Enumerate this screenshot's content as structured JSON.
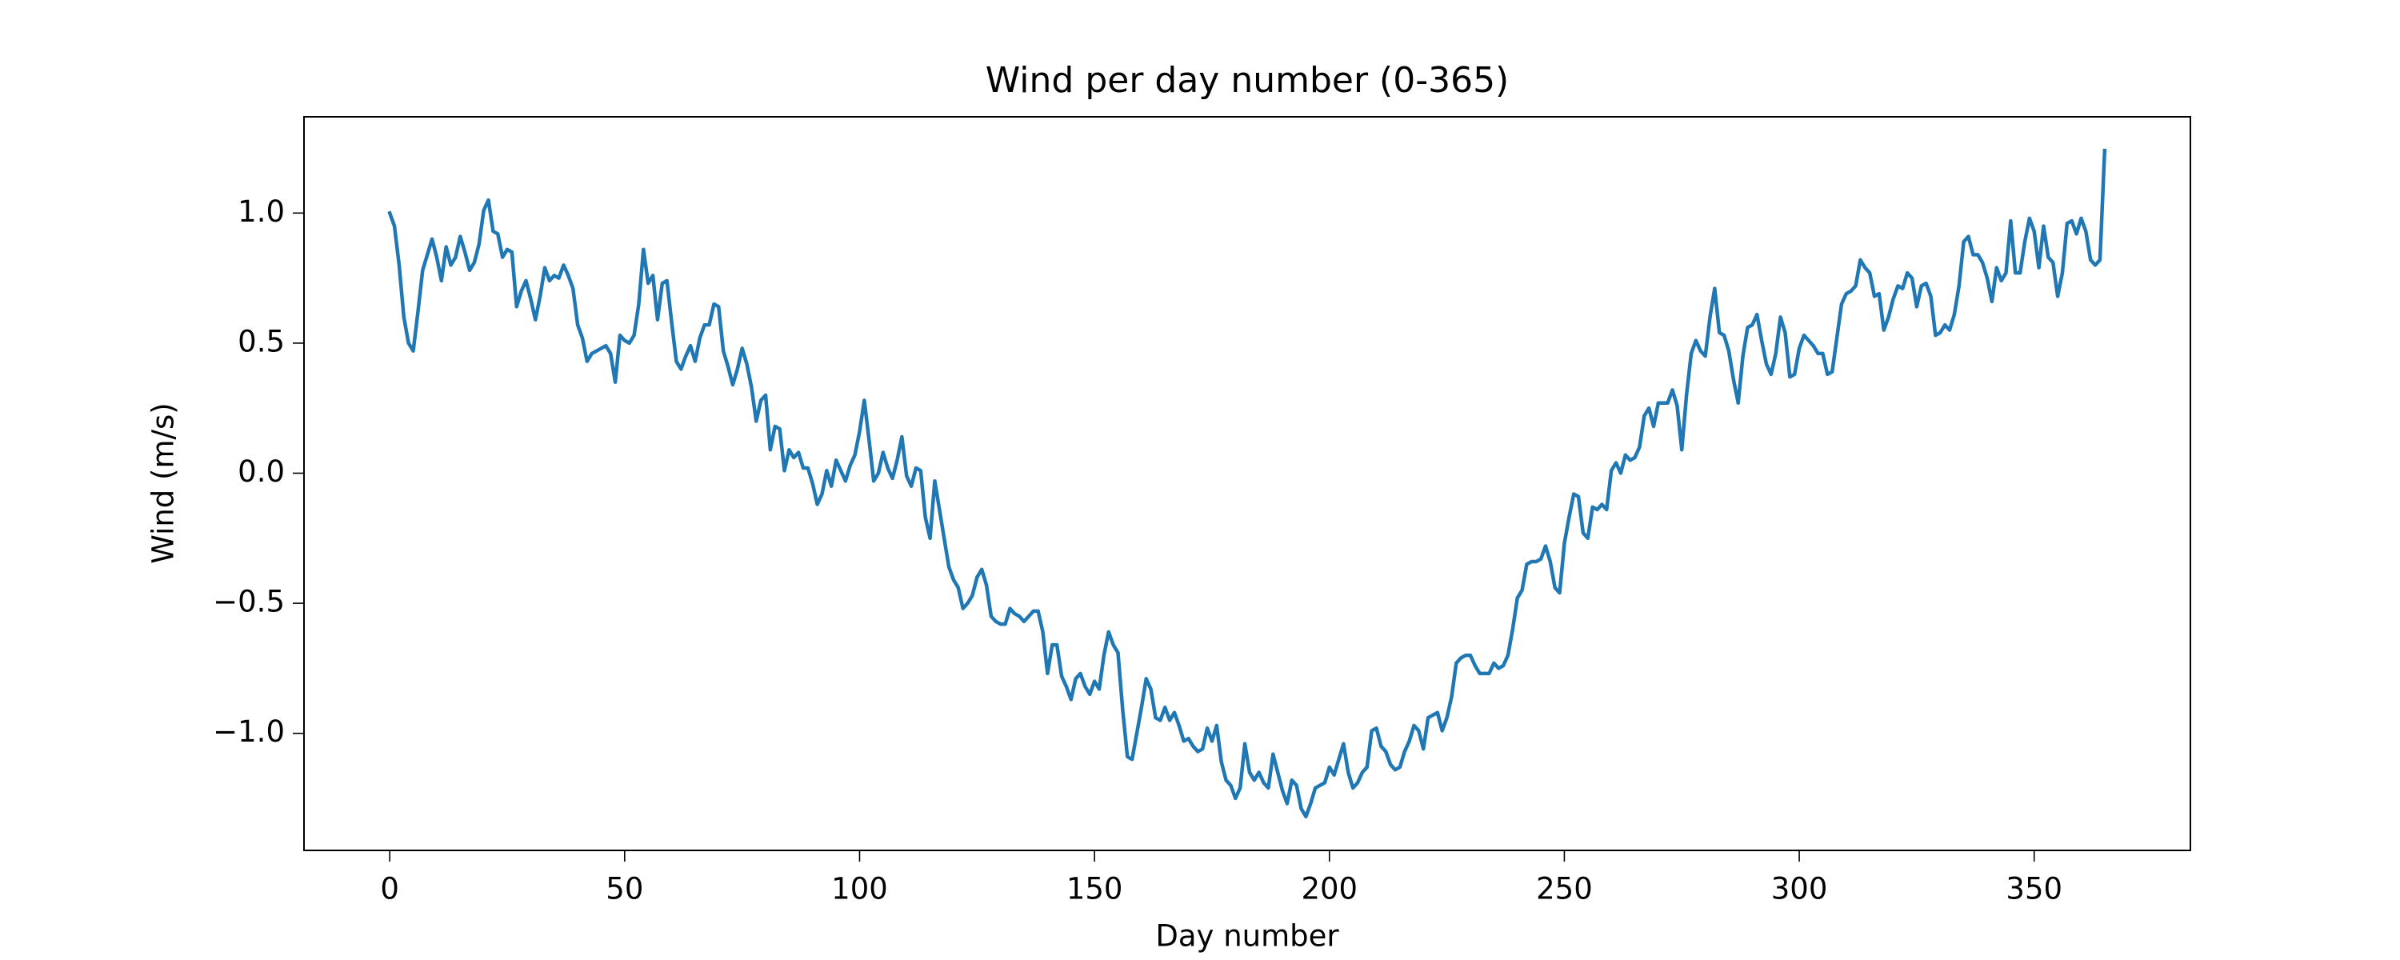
{
  "chart_data": {
    "type": "line",
    "title": "Wind per day number (0-365)",
    "xlabel": "Day number",
    "ylabel": "Wind (m/s)",
    "color": "#1f77b4",
    "x": [
      0,
      1,
      2,
      3,
      4,
      5,
      6,
      7,
      8,
      9,
      10,
      11,
      12,
      13,
      14,
      15,
      16,
      17,
      18,
      19,
      20,
      21,
      22,
      23,
      24,
      25,
      26,
      27,
      28,
      29,
      30,
      31,
      32,
      33,
      34,
      35,
      36,
      37,
      38,
      39,
      40,
      41,
      42,
      43,
      44,
      45,
      46,
      47,
      48,
      49,
      50,
      51,
      52,
      53,
      54,
      55,
      56,
      57,
      58,
      59,
      60,
      61,
      62,
      63,
      64,
      65,
      66,
      67,
      68,
      69,
      70,
      71,
      72,
      73,
      74,
      75,
      76,
      77,
      78,
      79,
      80,
      81,
      82,
      83,
      84,
      85,
      86,
      87,
      88,
      89,
      90,
      91,
      92,
      93,
      94,
      95,
      96,
      97,
      98,
      99,
      100,
      101,
      102,
      103,
      104,
      105,
      106,
      107,
      108,
      109,
      110,
      111,
      112,
      113,
      114,
      115,
      116,
      117,
      118,
      119,
      120,
      121,
      122,
      123,
      124,
      125,
      126,
      127,
      128,
      129,
      130,
      131,
      132,
      133,
      134,
      135,
      136,
      137,
      138,
      139,
      140,
      141,
      142,
      143,
      144,
      145,
      146,
      147,
      148,
      149,
      150,
      151,
      152,
      153,
      154,
      155,
      156,
      157,
      158,
      159,
      160,
      161,
      162,
      163,
      164,
      165,
      166,
      167,
      168,
      169,
      170,
      171,
      172,
      173,
      174,
      175,
      176,
      177,
      178,
      179,
      180,
      181,
      182,
      183,
      184,
      185,
      186,
      187,
      188,
      189,
      190,
      191,
      192,
      193,
      194,
      195,
      196,
      197,
      198,
      199,
      200,
      201,
      202,
      203,
      204,
      205,
      206,
      207,
      208,
      209,
      210,
      211,
      212,
      213,
      214,
      215,
      216,
      217,
      218,
      219,
      220,
      221,
      222,
      223,
      224,
      225,
      226,
      227,
      228,
      229,
      230,
      231,
      232,
      233,
      234,
      235,
      236,
      237,
      238,
      239,
      240,
      241,
      242,
      243,
      244,
      245,
      246,
      247,
      248,
      249,
      250,
      251,
      252,
      253,
      254,
      255,
      256,
      257,
      258,
      259,
      260,
      261,
      262,
      263,
      264,
      265,
      266,
      267,
      268,
      269,
      270,
      271,
      272,
      273,
      274,
      275,
      276,
      277,
      278,
      279,
      280,
      281,
      282,
      283,
      284,
      285,
      286,
      287,
      288,
      289,
      290,
      291,
      292,
      293,
      294,
      295,
      296,
      297,
      298,
      299,
      300,
      301,
      302,
      303,
      304,
      305,
      306,
      307,
      308,
      309,
      310,
      311,
      312,
      313,
      314,
      315,
      316,
      317,
      318,
      319,
      320,
      321,
      322,
      323,
      324,
      325,
      326,
      327,
      328,
      329,
      330,
      331,
      332,
      333,
      334,
      335,
      336,
      337,
      338,
      339,
      340,
      341,
      342,
      343,
      344,
      345,
      346,
      347,
      348,
      349,
      350,
      351,
      352,
      353,
      354,
      355,
      356,
      357,
      358,
      359,
      360,
      361,
      362,
      363,
      364,
      365
    ],
    "values": [
      1.0,
      0.95,
      0.8,
      0.6,
      0.5,
      0.47,
      0.62,
      0.78,
      0.84,
      0.9,
      0.83,
      0.74,
      0.87,
      0.8,
      0.83,
      0.91,
      0.85,
      0.78,
      0.81,
      0.88,
      1.01,
      1.05,
      0.93,
      0.92,
      0.83,
      0.86,
      0.85,
      0.64,
      0.7,
      0.74,
      0.67,
      0.59,
      0.68,
      0.79,
      0.74,
      0.76,
      0.75,
      0.8,
      0.76,
      0.71,
      0.57,
      0.52,
      0.43,
      0.46,
      0.47,
      0.48,
      0.49,
      0.46,
      0.35,
      0.53,
      0.51,
      0.5,
      0.53,
      0.65,
      0.86,
      0.73,
      0.76,
      0.59,
      0.73,
      0.74,
      0.58,
      0.43,
      0.4,
      0.45,
      0.49,
      0.43,
      0.52,
      0.57,
      0.57,
      0.65,
      0.64,
      0.47,
      0.41,
      0.34,
      0.4,
      0.48,
      0.42,
      0.33,
      0.2,
      0.28,
      0.3,
      0.09,
      0.18,
      0.17,
      0.01,
      0.09,
      0.06,
      0.08,
      0.02,
      0.02,
      -0.04,
      -0.12,
      -0.08,
      0.01,
      -0.05,
      0.05,
      0.01,
      -0.03,
      0.03,
      0.07,
      0.16,
      0.28,
      0.13,
      -0.03,
      0.0,
      0.08,
      0.02,
      -0.02,
      0.05,
      0.14,
      -0.01,
      -0.05,
      0.02,
      0.01,
      -0.17,
      -0.25,
      -0.03,
      -0.14,
      -0.25,
      -0.36,
      -0.41,
      -0.44,
      -0.52,
      -0.5,
      -0.47,
      -0.4,
      -0.37,
      -0.43,
      -0.55,
      -0.57,
      -0.58,
      -0.58,
      -0.52,
      -0.54,
      -0.55,
      -0.57,
      -0.55,
      -0.53,
      -0.53,
      -0.61,
      -0.77,
      -0.66,
      -0.66,
      -0.78,
      -0.82,
      -0.87,
      -0.79,
      -0.77,
      -0.82,
      -0.85,
      -0.8,
      -0.83,
      -0.7,
      -0.61,
      -0.66,
      -0.69,
      -0.91,
      -1.09,
      -1.1,
      -1.0,
      -0.9,
      -0.79,
      -0.83,
      -0.94,
      -0.95,
      -0.9,
      -0.95,
      -0.92,
      -0.97,
      -1.03,
      -1.02,
      -1.05,
      -1.07,
      -1.06,
      -0.98,
      -1.03,
      -0.97,
      -1.11,
      -1.18,
      -1.2,
      -1.25,
      -1.21,
      -1.04,
      -1.15,
      -1.18,
      -1.15,
      -1.19,
      -1.21,
      -1.08,
      -1.15,
      -1.22,
      -1.27,
      -1.18,
      -1.2,
      -1.29,
      -1.32,
      -1.27,
      -1.21,
      -1.2,
      -1.19,
      -1.13,
      -1.16,
      -1.1,
      -1.04,
      -1.15,
      -1.21,
      -1.19,
      -1.15,
      -1.13,
      -0.99,
      -0.98,
      -1.05,
      -1.07,
      -1.12,
      -1.14,
      -1.13,
      -1.07,
      -1.03,
      -0.97,
      -0.99,
      -1.06,
      -0.94,
      -0.93,
      -0.92,
      -0.99,
      -0.94,
      -0.86,
      -0.73,
      -0.71,
      -0.7,
      -0.7,
      -0.74,
      -0.77,
      -0.77,
      -0.77,
      -0.73,
      -0.75,
      -0.74,
      -0.7,
      -0.6,
      -0.48,
      -0.45,
      -0.35,
      -0.34,
      -0.34,
      -0.33,
      -0.28,
      -0.34,
      -0.44,
      -0.46,
      -0.27,
      -0.17,
      -0.08,
      -0.09,
      -0.23,
      -0.25,
      -0.13,
      -0.14,
      -0.12,
      -0.14,
      0.01,
      0.04,
      0.0,
      0.07,
      0.05,
      0.06,
      0.1,
      0.22,
      0.25,
      0.18,
      0.27,
      0.27,
      0.27,
      0.32,
      0.26,
      0.09,
      0.3,
      0.46,
      0.51,
      0.47,
      0.45,
      0.6,
      0.71,
      0.54,
      0.53,
      0.47,
      0.36,
      0.27,
      0.45,
      0.56,
      0.57,
      0.61,
      0.51,
      0.42,
      0.38,
      0.46,
      0.6,
      0.54,
      0.37,
      0.38,
      0.48,
      0.53,
      0.51,
      0.49,
      0.46,
      0.46,
      0.38,
      0.39,
      0.52,
      0.65,
      0.69,
      0.7,
      0.72,
      0.82,
      0.79,
      0.77,
      0.68,
      0.69,
      0.55,
      0.6,
      0.67,
      0.72,
      0.71,
      0.77,
      0.75,
      0.64,
      0.72,
      0.73,
      0.68,
      0.53,
      0.54,
      0.57,
      0.55,
      0.61,
      0.72,
      0.89,
      0.91,
      0.84,
      0.84,
      0.81,
      0.75,
      0.66,
      0.79,
      0.74,
      0.77,
      0.97,
      0.77,
      0.77,
      0.89,
      0.98,
      0.93,
      0.79,
      0.95,
      0.83,
      0.81,
      0.68,
      0.77,
      0.96,
      0.97,
      0.92,
      0.98,
      0.93,
      0.82,
      0.8,
      0.82,
      1.24
    ],
    "xlim": [
      -18.25,
      383.25
    ],
    "xticks": [
      0,
      50,
      100,
      150,
      200,
      250,
      300,
      350
    ],
    "ylim": [
      -1.45,
      1.37
    ],
    "yticks": [
      {
        "value": -1.0,
        "label": "−1.0"
      },
      {
        "value": -0.5,
        "label": "−0.5"
      },
      {
        "value": 0.0,
        "label": "0.0"
      },
      {
        "value": 0.5,
        "label": "0.5"
      },
      {
        "value": 1.0,
        "label": "1.0"
      }
    ]
  }
}
